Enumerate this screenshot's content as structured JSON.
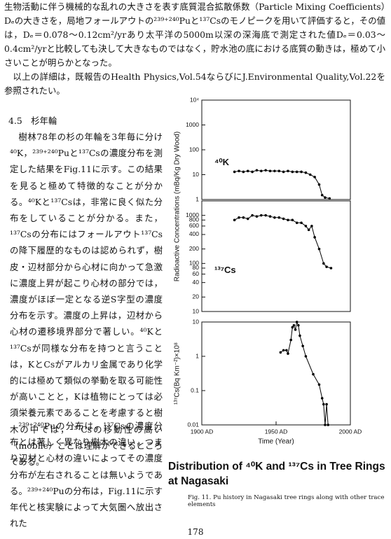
{
  "body": {
    "paragraph1": "生物活動に伴う機械的な乱れの大きさを表す底質混合拡散係数（Particle Mixing Coefficients）Dₑの大きさを，局地フォールアウトの²³⁹⁺²⁴⁰Puと¹³⁷Csのモノピークを用いて評価すると，その値は，Dₑ＝0.078～0.12cm²/yrあり太平洋の5000m以深の深海底で測定された値Dₑ＝0.03～0.4cm²/yrと比較しても決して大きなものではなく，貯水池の底における底質の動きは，極めて小さいことが明らかとなった。",
    "paragraph2": "以上の詳細は，既報告のHealth Physics,Vol.54ならびにJ.Environmental Quality,Vol.22を参照されたい。",
    "section_heading": "4.5　杉年輪",
    "column_paragraph1": "樹林78年の杉の年輪を3年毎に分け⁴⁰K，²³⁹⁺²⁴⁰Puと¹³⁷Csの濃度分布を測定した結果をFig.11に示す。この結果を見ると極めて特徴的なことが分かる。⁴⁰Kと¹³⁷Csは，非常に良く似た分布をしていることが分かる。また，¹³⁷Csの分布にはフォールアウト¹³⁷Csの降下履歴的なものは認められず，樹皮・辺材部分から心材に向かって急激に濃度上昇が起こり心材の部分では，濃度がほぼ一定となる逆S字型の濃度分布を示す。濃度の上昇は，辺材から心材の遷移境界部分で著しい。⁴⁰Kと¹³⁷Csが同様な分布を持つと言うことは，KとCsがアルカリ金属であり化学的には極めて類似の挙動を取る可能性が高いことと，Kは植物にとっては必須栄養元素であることを考慮すると樹木の中では，¹³⁷Csの移動性の高い（mobile）ことは理解ができるところである。",
    "column_paragraph2": "²³⁹⁺²⁴⁰Puの分布は，¹³⁷Csの濃度分布とは著しく異なり樹木の違い，つまり辺材と心材の違いによってその濃度分布が左右されることは無いようである。²³⁹⁺²⁴⁰Puの分布は，Fig.11に示す年代と核実験によって大気圏へ放出された"
  },
  "figure": {
    "title": "Distribution of ⁴⁰K and ¹³⁷Cs in Tree Rings at Nagasaki",
    "caption": "Fig. 11. Pu history in Nagasaki tree rings along with other trace elements"
  },
  "page_number": "178",
  "chart_data": [
    {
      "type": "line",
      "log_y": true,
      "panel_label": "⁴⁰K",
      "ylabel": "Radioactive Concentrations (mBq/Kg Dry Wood)",
      "xlim": [
        1900,
        2000
      ],
      "ylim": [
        1,
        10000
      ],
      "yticks": [
        1,
        10,
        100,
        1000,
        {
          "value": 10000,
          "label": "10⁴"
        }
      ],
      "color": "#000000",
      "x": [
        1922,
        1925,
        1928,
        1931,
        1934,
        1937,
        1940,
        1943,
        1946,
        1949,
        1952,
        1955,
        1958,
        1961,
        1964,
        1967,
        1970,
        1973,
        1976,
        1979,
        1981,
        1983,
        1986
      ],
      "values": [
        13,
        14,
        13,
        14,
        13,
        15,
        14,
        15,
        14,
        14,
        14,
        13,
        14,
        13,
        13,
        13,
        12,
        10,
        8,
        4,
        1.5,
        1.2,
        1.1
      ]
    },
    {
      "type": "line",
      "log_y": true,
      "panel_label": "¹³⁷Cs",
      "xlim": [
        1900,
        2000
      ],
      "ylim": [
        10,
        2000
      ],
      "yticks": [
        10,
        20,
        40,
        60,
        80,
        100,
        200,
        400,
        600,
        800,
        1000
      ],
      "color": "#000000",
      "x": [
        1922,
        1925,
        1928,
        1931,
        1934,
        1937,
        1940,
        1943,
        1946,
        1949,
        1952,
        1955,
        1958,
        1961,
        1964,
        1967,
        1970,
        1972,
        1974,
        1976,
        1979,
        1982,
        1984,
        1987
      ],
      "values": [
        800,
        900,
        900,
        850,
        1000,
        950,
        1000,
        1000,
        950,
        900,
        900,
        850,
        800,
        800,
        700,
        700,
        600,
        500,
        600,
        350,
        200,
        100,
        85,
        80
      ]
    },
    {
      "type": "line",
      "log_y": true,
      "ylabel": "¹³⁷Cs(Bq Km⁻²)×10⁸",
      "xlabel": "Time (Year)",
      "xlim": [
        1900,
        2000
      ],
      "ylim": [
        0.01,
        10
      ],
      "xticks": [
        {
          "value": 1900,
          "label": "1900 AD"
        },
        {
          "value": 1950,
          "label": "1950 AD"
        },
        {
          "value": 2000,
          "label": "2000 AD"
        }
      ],
      "yticks": [
        0.01,
        0.1,
        1,
        10
      ],
      "color": "#000000",
      "x": [
        1953,
        1955,
        1957,
        1958,
        1960,
        1961,
        1962,
        1963,
        1964,
        1965,
        1966,
        1968,
        1970,
        1975,
        1979,
        1981,
        1982,
        1983,
        1984,
        1985
      ],
      "values": [
        1.3,
        1.5,
        1.5,
        1.2,
        3,
        7,
        8,
        6,
        10,
        8,
        4,
        2,
        1,
        0.3,
        0.15,
        0.06,
        0.04,
        0.01,
        0.04,
        0.01
      ]
    }
  ]
}
